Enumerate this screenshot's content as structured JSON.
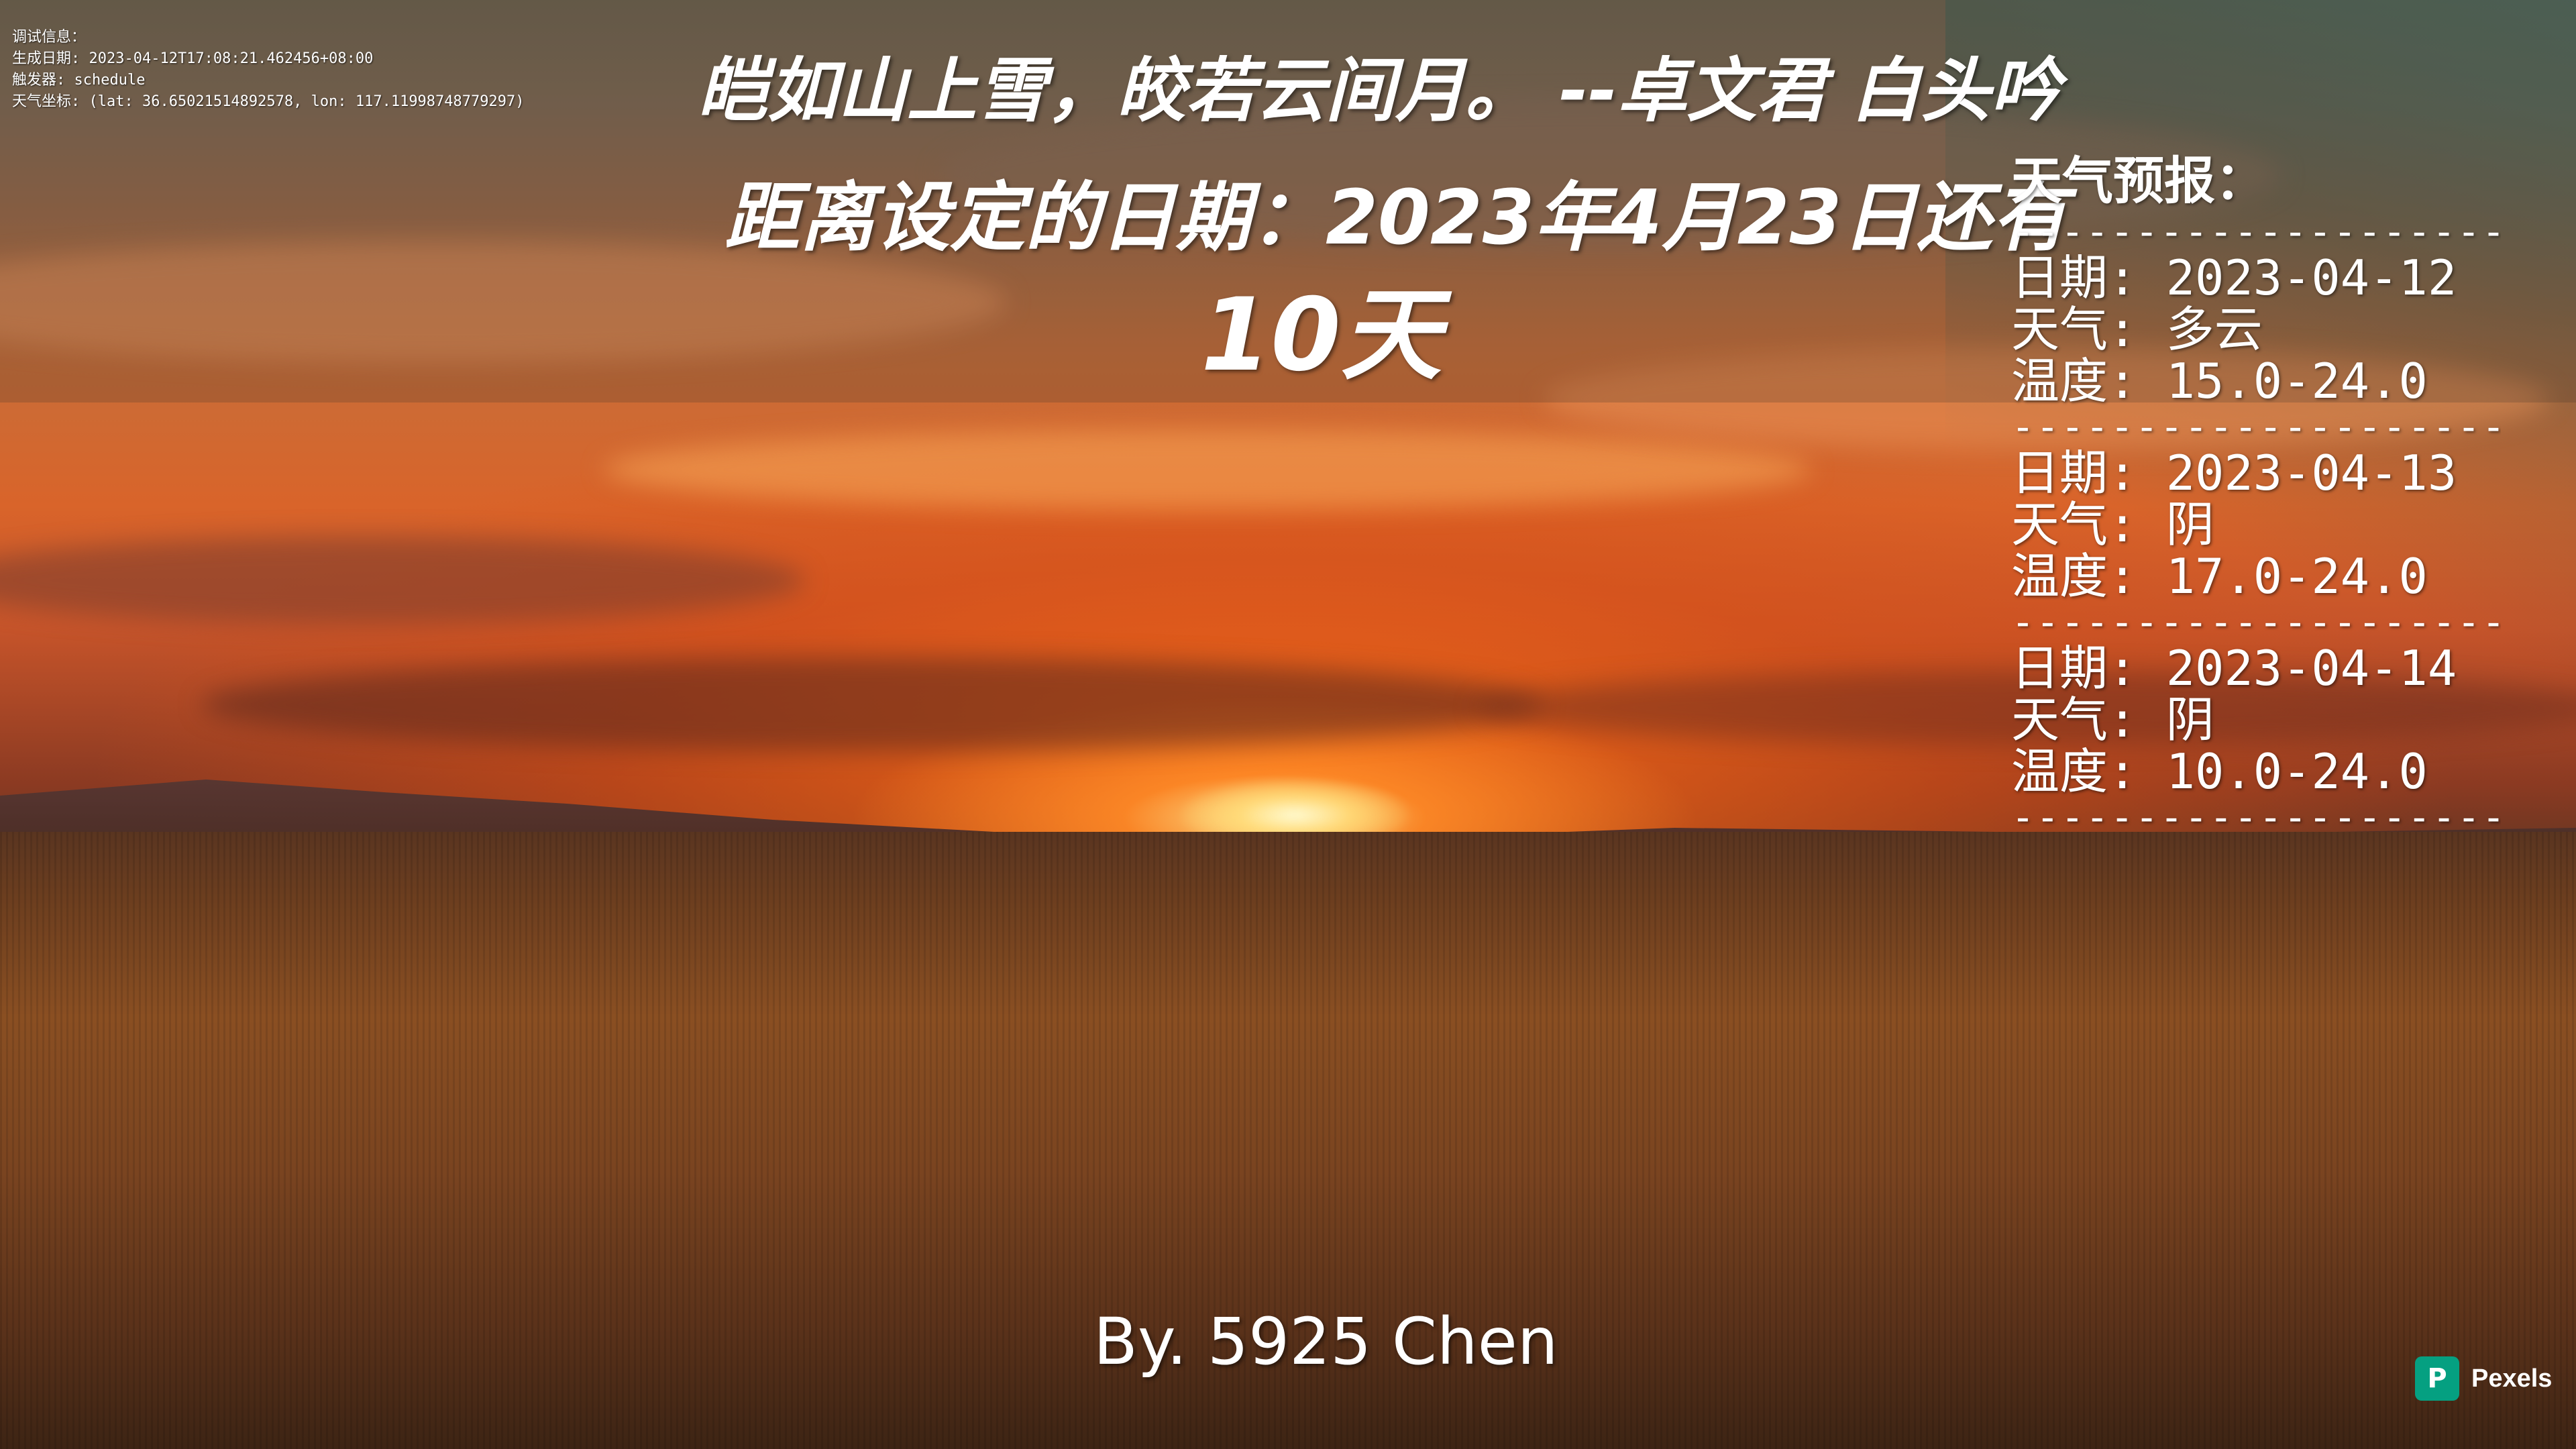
{
  "debug": {
    "title": "调试信息：",
    "generated": "生成日期: 2023-04-12T17:08:21.462456+08:00",
    "trigger": "触发器: schedule",
    "coords": "天气坐标: (lat: 36.65021514892578, lon: 117.11998748779297)"
  },
  "quote": "皑如山上雪，皎若云间月。 --卓文君 白头吟",
  "countdown": {
    "line": "距离设定的日期：2023年4月23日还有",
    "days": "10天"
  },
  "weather": {
    "title": "天气预报：",
    "separator": "--------------------------------",
    "entries": [
      {
        "date": "日期: 2023-04-12",
        "condition": "天气: 多云",
        "temp": "温度: 15.0-24.0"
      },
      {
        "date": "日期: 2023-04-13",
        "condition": "天气: 阴",
        "temp": "温度: 17.0-24.0"
      },
      {
        "date": "日期: 2023-04-14",
        "condition": "天气: 阴",
        "temp": "温度: 10.0-24.0"
      }
    ]
  },
  "author": "By. 5925 Chen",
  "watermark": {
    "logo_letter": "P",
    "label": "Pexels",
    "logo_color": "#05a081"
  },
  "colors": {
    "text": "#ffffff",
    "sky_top": "#6f6450",
    "sunset": "#d9642a",
    "field": "#8a4f22"
  }
}
